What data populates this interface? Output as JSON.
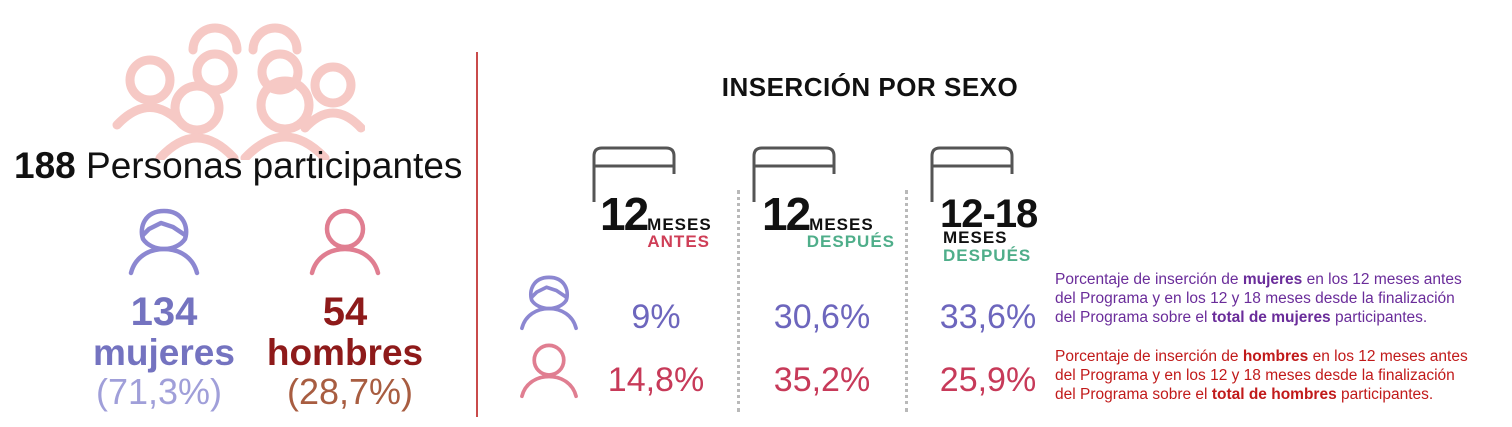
{
  "participants": {
    "total_number": "188",
    "total_label": "Personas participantes",
    "women": {
      "number": "134",
      "label": "mujeres",
      "percent": "(71,3%)"
    },
    "men": {
      "number": "54",
      "label": "hombres",
      "percent": "(28,7%)"
    }
  },
  "insertion": {
    "title": "INSERCIÓN POR SEXO",
    "periods": [
      {
        "big": "12",
        "unit": "MESES",
        "when": "ANTES"
      },
      {
        "big": "12",
        "unit": "MESES",
        "when": "DESPUÉS"
      },
      {
        "big": "12-18",
        "unit": "MESES",
        "when": "DESPUÉS"
      }
    ],
    "women_values": [
      "9%",
      "30,6%",
      "33,6%"
    ],
    "men_values": [
      "14,8%",
      "35,2%",
      "25,9%"
    ]
  },
  "notes": {
    "women": {
      "p1": "Porcentaje de inserción de ",
      "b1": "mujeres",
      "p2": " en los 12 meses antes",
      "line2": "del Programa y en los 12 y 18 meses desde la finalización",
      "p3": "del Programa sobre el ",
      "b2": "total de mujeres",
      "p4": " participantes."
    },
    "men": {
      "p1": "Porcentaje de inserción de ",
      "b1": "hombres",
      "p2": " en los 12 meses antes",
      "line2": "del Programa y en los 12 y 18 meses desde la finalización",
      "p3": "del Programa sobre el ",
      "b2": "total de hombres",
      "p4": " participantes."
    }
  },
  "colors": {
    "crowd": "#f6c9c5",
    "women_icon": "#8c87d1",
    "men_icon": "#e07e91",
    "divider": "#c94b4b"
  },
  "icons": [
    "people-crowd-icon",
    "woman-icon",
    "man-icon",
    "calendar-icon"
  ]
}
